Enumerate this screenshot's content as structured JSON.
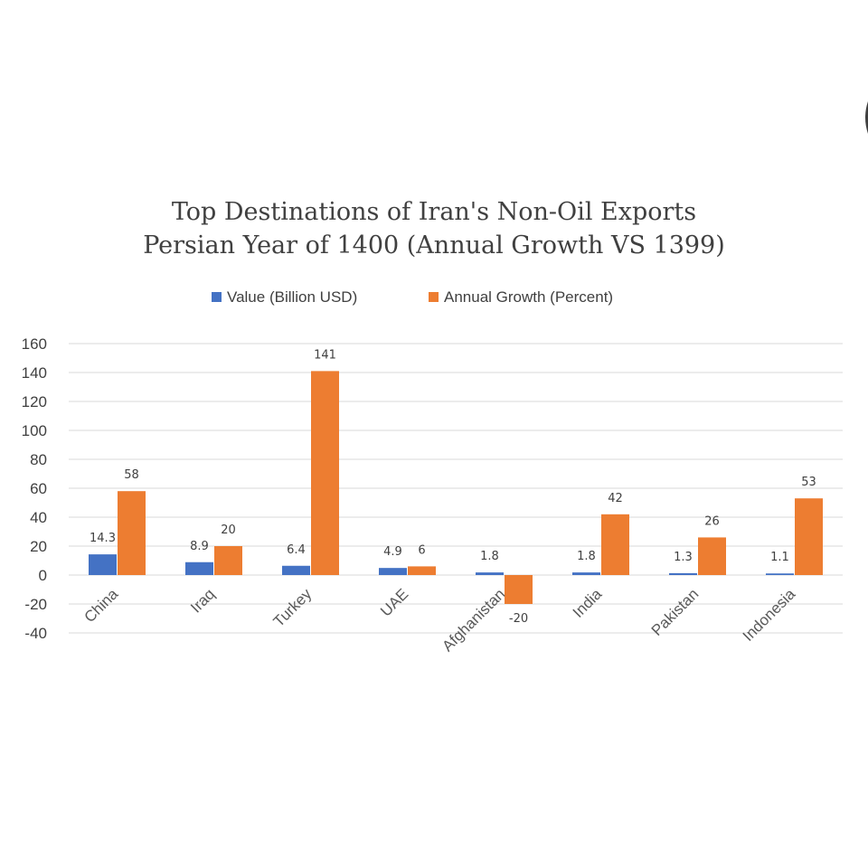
{
  "chart_data": {
    "type": "bar",
    "title": "Top Destinations  of Iran's Non-Oil Exports",
    "subtitle": "Persian  Year of 1400 (Annual  Growth VS 1399)",
    "categories": [
      "China",
      "Iraq",
      "Turkey",
      "UAE",
      "Afghanistan",
      "India",
      "Pakistan",
      "Indonesia"
    ],
    "series": [
      {
        "name": "Value (Billion USD)",
        "color": "#4472c4",
        "values": [
          14.3,
          8.9,
          6.4,
          4.9,
          1.8,
          1.8,
          1.3,
          1.1
        ],
        "labels": [
          "14.3",
          "8.9",
          "6.4",
          "4.9",
          "1.8",
          "1.8",
          "1.3",
          "1.1"
        ]
      },
      {
        "name": "Annual Growth (Percent)",
        "color": "#ed7d31",
        "values": [
          58,
          20,
          141,
          6,
          -20,
          42,
          26,
          53
        ],
        "labels": [
          "58",
          "20",
          "141",
          "6",
          "-20",
          "42",
          "26",
          "53"
        ]
      }
    ],
    "y_ticks": [
      "160",
      "140",
      "120",
      "100",
      "80",
      "60",
      "40",
      "20",
      "0",
      "-20",
      "-40"
    ],
    "ylim": [
      -40,
      160
    ],
    "grid": true,
    "legend_position": "top-center",
    "xlabel": "",
    "ylabel": ""
  }
}
